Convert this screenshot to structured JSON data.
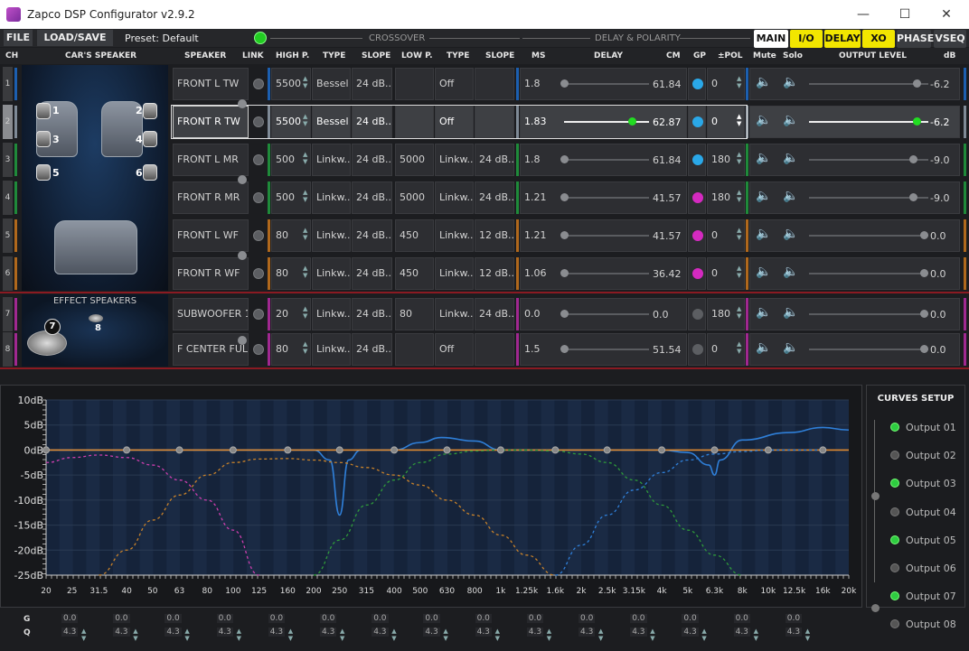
{
  "window": {
    "title": "Zapco DSP Configurator v2.9.2"
  },
  "menu": {
    "file": "FILE",
    "load_save": "LOAD/SAVE",
    "preset": "Preset: Default",
    "crossover": "CROSSOVER",
    "delay_polarity": "DELAY & POLARITY"
  },
  "views": [
    {
      "label": "MAIN",
      "bg": "#ffffff",
      "fg": "#111111"
    },
    {
      "label": "I/O",
      "bg": "#f2e600",
      "fg": "#111111"
    },
    {
      "label": "DELAY",
      "bg": "#f2e600",
      "fg": "#111111"
    },
    {
      "label": "XO",
      "bg": "#f2e600",
      "fg": "#111111"
    },
    {
      "label": "PHASE",
      "bg": "#3a3c40",
      "fg": "#eeeeee"
    },
    {
      "label": "VSEQ",
      "bg": "#3a3c40",
      "fg": "#eeeeee"
    }
  ],
  "headers": {
    "ch": "CH",
    "cars_speaker": "CAR'S SPEAKER",
    "speaker": "SPEAKER",
    "link": "LINK",
    "high_p": "HIGH P.",
    "type1": "TYPE",
    "slope1": "SLOPE",
    "low_p": "LOW P.",
    "type2": "TYPE",
    "slope2": "SLOPE",
    "ms": "MS",
    "delay": "DELAY",
    "cm": "CM",
    "gp": "GP",
    "pol": "±POL",
    "mute": "Mute",
    "solo": "Solo",
    "output_level": "OUTPUT LEVEL",
    "db": "dB"
  },
  "effect_speakers": "EFFECT SPEAKERS",
  "car_speaker_numbers": [
    "1",
    "2",
    "3",
    "4",
    "5",
    "6",
    "7",
    "8"
  ],
  "channels": [
    {
      "ch": "1",
      "name": "FRONT L TW",
      "hp": "5500",
      "hptype": "Bessel",
      "hpslope": "24 dB...",
      "lp": "",
      "lptype": "Off",
      "lpslope": "",
      "ms": "1.8",
      "delay": 0.0,
      "cm": "61.84",
      "gp": "#2aa8e8",
      "pol": "0",
      "db": "-6.2",
      "level": 0.9,
      "color": "#1c5fb0"
    },
    {
      "ch": "2",
      "name": "FRONT R TW",
      "hp": "5500",
      "hptype": "Bessel",
      "hpslope": "24 dB...",
      "lp": "",
      "lptype": "Off",
      "lpslope": "",
      "ms": "1.83",
      "delay": 0.02,
      "cm": "62.87",
      "gp": "#2aa8e8",
      "pol": "0",
      "db": "-6.2",
      "level": 0.9,
      "color": "#7f8a96"
    },
    {
      "ch": "3",
      "name": "FRONT L MR",
      "hp": "500",
      "hptype": "Linkw...",
      "hpslope": "24 dB...",
      "lp": "5000",
      "lptype": "Linkw...",
      "lpslope": "24 dB...",
      "ms": "1.8",
      "delay": 0.0,
      "cm": "61.84",
      "gp": "#2aa8e8",
      "pol": "180",
      "db": "-9.0",
      "level": 0.87,
      "color": "#1f8a3a"
    },
    {
      "ch": "4",
      "name": "FRONT R MR",
      "hp": "500",
      "hptype": "Linkw...",
      "hpslope": "24 dB...",
      "lp": "5000",
      "lptype": "Linkw...",
      "lpslope": "24 dB...",
      "ms": "1.21",
      "delay": 0.0,
      "cm": "41.57",
      "gp": "#d42ac0",
      "pol": "180",
      "db": "-9.0",
      "level": 0.87,
      "color": "#1f8a3a"
    },
    {
      "ch": "5",
      "name": "FRONT L WF",
      "hp": "80",
      "hptype": "Linkw...",
      "hpslope": "24 dB...",
      "lp": "450",
      "lptype": "Linkw...",
      "lpslope": "12 dB...",
      "ms": "1.21",
      "delay": 0.0,
      "cm": "41.57",
      "gp": "#d42ac0",
      "pol": "0",
      "db": "0.0",
      "level": 0.96,
      "color": "#b0681c"
    },
    {
      "ch": "6",
      "name": "FRONT R WF",
      "hp": "80",
      "hptype": "Linkw...",
      "hpslope": "24 dB...",
      "lp": "450",
      "lptype": "Linkw...",
      "lpslope": "12 dB...",
      "ms": "1.06",
      "delay": 0.0,
      "cm": "36.42",
      "gp": "#d42ac0",
      "pol": "0",
      "db": "0.0",
      "level": 0.96,
      "color": "#b0681c"
    },
    {
      "ch": "7",
      "name": "SUBWOOFER 1",
      "hp": "20",
      "hptype": "Linkw...",
      "hpslope": "24 dB...",
      "lp": "80",
      "lptype": "Linkw...",
      "lpslope": "24 dB...",
      "ms": "0.0",
      "delay": 0.0,
      "cm": "0.0",
      "gp": "#5c5e62",
      "pol": "180",
      "db": "0.0",
      "level": 0.96,
      "color": "#a02890"
    },
    {
      "ch": "8",
      "name": "F CENTER FULL",
      "hp": "80",
      "hptype": "Linkw...",
      "hpslope": "24 dB...",
      "lp": "",
      "lptype": "Off",
      "lpslope": "",
      "ms": "1.5",
      "delay": 0.0,
      "cm": "51.54",
      "gp": "#5c5e62",
      "pol": "0",
      "db": "0.0",
      "level": 0.96,
      "color": "#a02890"
    }
  ],
  "chart_data": {
    "type": "line",
    "title": "",
    "xlabel": "",
    "ylabel": "",
    "x_scale": "log",
    "ylim": [
      -25,
      10
    ],
    "y_ticks": [
      "10dB",
      "5dB",
      "0dB",
      "-5dB",
      "-10dB",
      "-15dB",
      "-20dB",
      "-25dB"
    ],
    "x_ticks": [
      "20",
      "25",
      "31.5",
      "40",
      "50",
      "63",
      "80",
      "100",
      "125",
      "160",
      "200",
      "250",
      "315",
      "400",
      "500",
      "630",
      "800",
      "1k",
      "1.25k",
      "1.6k",
      "2k",
      "2.5k",
      "3.15k",
      "4k",
      "5k",
      "6.3k",
      "8k",
      "10k",
      "12.5k",
      "16k",
      "20k"
    ],
    "series": [
      {
        "color": "#2f7fd8",
        "dash": false,
        "x": [
          20,
          200,
          230,
          250,
          270,
          300,
          400,
          500,
          600,
          800,
          1000,
          2000,
          4000,
          5000,
          6000,
          6300,
          6600,
          8000,
          12000,
          16000,
          20000
        ],
        "y": [
          0,
          0,
          -2,
          -13,
          -2,
          0,
          0,
          1.5,
          2.5,
          1.8,
          0,
          0,
          0,
          -0.5,
          -3,
          -5,
          -2,
          2,
          3.5,
          4.5,
          4
        ]
      },
      {
        "color": "#e08a30",
        "dash": false,
        "x": [
          20,
          20000
        ],
        "y": [
          0,
          0
        ]
      },
      {
        "color": "#cc3fae",
        "dash": true,
        "x": [
          20,
          25,
          31.5,
          40,
          50,
          63,
          80,
          100,
          125
        ],
        "y": [
          -2.5,
          -1.5,
          -1,
          -1.5,
          -3,
          -6,
          -10,
          -16,
          -25
        ]
      },
      {
        "color": "#c8822a",
        "dash": true,
        "x": [
          31.5,
          40,
          50,
          63,
          80,
          100,
          125,
          160,
          200,
          250,
          315,
          400,
          500,
          630,
          800,
          1000,
          1250,
          1600
        ],
        "y": [
          -25,
          -20,
          -14,
          -9,
          -5,
          -2.5,
          -1.8,
          -1.7,
          -2,
          -2.5,
          -3.5,
          -5,
          -7,
          -10,
          -13,
          -17,
          -21,
          -25
        ]
      },
      {
        "color": "#2f9a3a",
        "dash": true,
        "x": [
          200,
          250,
          315,
          400,
          500,
          630,
          800,
          1000,
          1250,
          1600,
          2000,
          2500,
          3150,
          4000,
          5000,
          6300,
          8000
        ],
        "y": [
          -25,
          -18,
          -11,
          -6,
          -2.5,
          -0.8,
          -0.2,
          0,
          0,
          -0.2,
          -0.8,
          -2.5,
          -6,
          -11,
          -16,
          -21,
          -25
        ]
      },
      {
        "color": "#2f7fd8",
        "dash": true,
        "x": [
          1600,
          2000,
          2500,
          3150,
          4000,
          5000,
          6300,
          8000,
          10000,
          16000
        ],
        "y": [
          -25,
          -19,
          -13,
          -8,
          -4.5,
          -2,
          -0.8,
          -0.3,
          0,
          0
        ]
      }
    ],
    "nodes_hz": [
      20,
      40,
      63,
      100,
      160,
      250,
      400,
      630,
      1000,
      1600,
      2500,
      4000,
      6300,
      10000,
      16000
    ]
  },
  "curves_setup": {
    "title": "CURVES SETUP",
    "outputs": [
      {
        "label": "Output 01",
        "on": true
      },
      {
        "label": "Output 02",
        "on": false
      },
      {
        "label": "Output 03",
        "on": true
      },
      {
        "label": "Output 04",
        "on": false
      },
      {
        "label": "Output 05",
        "on": true
      },
      {
        "label": "Output 06",
        "on": false
      },
      {
        "label": "Output 07",
        "on": true
      },
      {
        "label": "Output 08",
        "on": false
      }
    ]
  },
  "eq_bands": {
    "g_label": "G",
    "q_label": "Q",
    "gains": [
      "0.0",
      "0.0",
      "0.0",
      "0.0",
      "0.0",
      "0.0",
      "0.0",
      "0.0",
      "0.0",
      "0.0",
      "0.0",
      "0.0",
      "0.0",
      "0.0",
      "0.0"
    ],
    "qs": [
      "4.3",
      "4.3",
      "4.3",
      "4.3",
      "4.3",
      "4.3",
      "4.3",
      "4.3",
      "4.3",
      "4.3",
      "4.3",
      "4.3",
      "4.3",
      "4.3",
      "4.3"
    ]
  }
}
